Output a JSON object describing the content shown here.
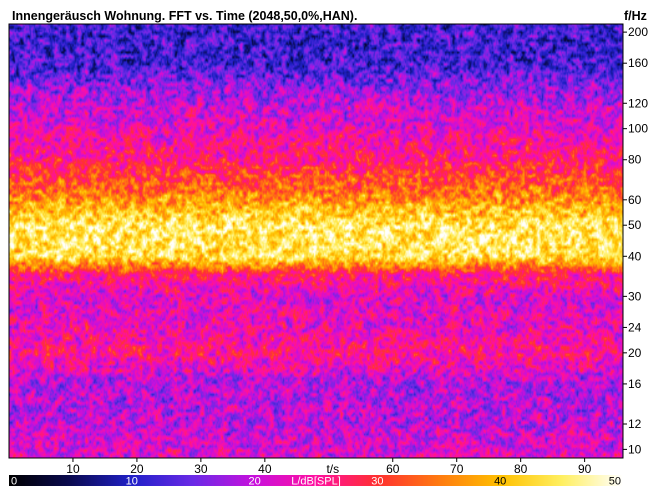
{
  "chart_data": {
    "type": "heatmap",
    "title": "Innengeräusch Wohnung. FFT vs. Time (2048,50,0%,HAN).",
    "xlabel": "t/s",
    "ylabel": "f/Hz",
    "colorbar_label": "L/dB[SPL]",
    "x_ticks": [
      10,
      20,
      30,
      40,
      60,
      70,
      80,
      90
    ],
    "xlim": [
      0,
      96
    ],
    "y_scale": "log",
    "y_ticks": [
      10,
      12,
      16,
      20,
      24,
      30,
      40,
      50,
      60,
      80,
      100,
      120,
      160,
      200
    ],
    "ylim": [
      9.4,
      212
    ],
    "colorbar_ticks": [
      0,
      10,
      20,
      30,
      40,
      50
    ],
    "zlim": [
      0,
      50
    ],
    "colormap": [
      "#000000",
      "#0a0a50",
      "#2020c8",
      "#6a2ae6",
      "#c810dc",
      "#ff10a0",
      "#ff3030",
      "#ff7a10",
      "#ffc000",
      "#ffef60",
      "#ffffff"
    ],
    "frequency_profile_db": [
      {
        "f": 10,
        "level": 22
      },
      {
        "f": 12,
        "level": 20
      },
      {
        "f": 16,
        "level": 19
      },
      {
        "f": 20,
        "level": 26
      },
      {
        "f": 24,
        "level": 23
      },
      {
        "f": 30,
        "level": 22
      },
      {
        "f": 35,
        "level": 27
      },
      {
        "f": 40,
        "level": 44
      },
      {
        "f": 50,
        "level": 45
      },
      {
        "f": 60,
        "level": 37
      },
      {
        "f": 80,
        "level": 27
      },
      {
        "f": 100,
        "level": 23
      },
      {
        "f": 120,
        "level": 20
      },
      {
        "f": 160,
        "level": 12
      },
      {
        "f": 200,
        "level": 12
      }
    ]
  }
}
